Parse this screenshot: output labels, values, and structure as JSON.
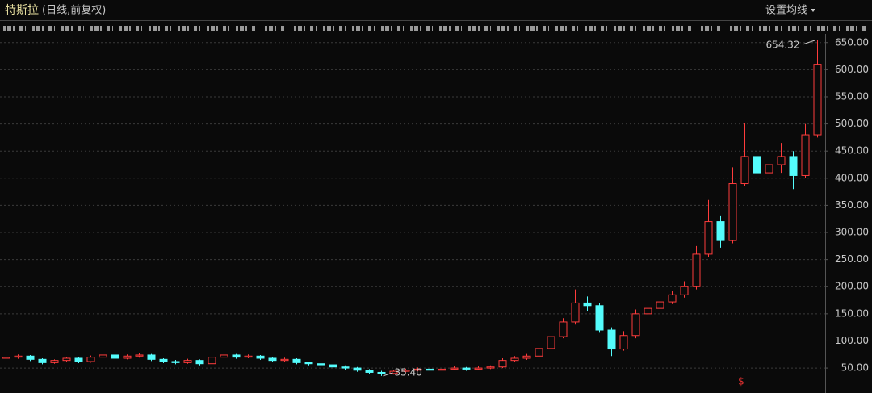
{
  "chart_data": {
    "type": "candlestick",
    "title": "特斯拉",
    "subtitle": "(日线,前复权)",
    "menu": "设置均线",
    "open": [
      68,
      70,
      72,
      66,
      60,
      64,
      68,
      62,
      70,
      74,
      68,
      72,
      74,
      66,
      62,
      60,
      64,
      58,
      70,
      74,
      70,
      72,
      68,
      64,
      66,
      60,
      58,
      56,
      52,
      50,
      46,
      42,
      40,
      44,
      46,
      48,
      46,
      48,
      50,
      48,
      50,
      52,
      64,
      68,
      72,
      86,
      108,
      135,
      170,
      165,
      120,
      85,
      110,
      150,
      160,
      172,
      185,
      200,
      260,
      320,
      285,
      390,
      440,
      410,
      425,
      440,
      405,
      480
    ],
    "high": [
      74,
      75,
      74,
      68,
      66,
      71,
      70,
      73,
      78,
      76,
      75,
      77,
      76,
      68,
      65,
      67,
      66,
      73,
      77,
      76,
      75,
      74,
      70,
      69,
      68,
      62,
      61,
      58,
      55,
      52,
      48,
      45,
      47,
      49,
      51,
      50,
      51,
      53,
      52,
      53,
      55,
      68,
      72,
      76,
      92,
      115,
      142,
      195,
      182,
      170,
      125,
      118,
      158,
      168,
      180,
      192,
      210,
      275,
      360,
      330,
      420,
      502,
      460,
      450,
      465,
      450,
      500,
      654.32
    ],
    "low": [
      65,
      67,
      63,
      57,
      58,
      61,
      59,
      60,
      67,
      65,
      66,
      69,
      63,
      59,
      57,
      58,
      55,
      56,
      67,
      67,
      68,
      65,
      61,
      62,
      57,
      55,
      53,
      49,
      47,
      43,
      39,
      35.4,
      38,
      42,
      44,
      43,
      44,
      46,
      45,
      46,
      48,
      50,
      62,
      65,
      70,
      84,
      105,
      130,
      155,
      115,
      72,
      82,
      105,
      142,
      155,
      168,
      180,
      195,
      255,
      272,
      280,
      385,
      330,
      395,
      410,
      380,
      400,
      475
    ],
    "close": [
      70,
      72,
      66,
      60,
      64,
      68,
      62,
      70,
      74,
      68,
      72,
      74,
      66,
      62,
      60,
      64,
      58,
      70,
      74,
      70,
      72,
      68,
      64,
      66,
      60,
      58,
      56,
      52,
      50,
      46,
      42,
      40,
      44,
      46,
      48,
      46,
      48,
      50,
      48,
      50,
      52,
      64,
      68,
      72,
      86,
      108,
      135,
      170,
      165,
      120,
      85,
      110,
      150,
      160,
      172,
      185,
      200,
      260,
      320,
      285,
      390,
      440,
      410,
      425,
      440,
      405,
      480,
      610
    ],
    "up_color": "#ff3c3c",
    "down_color": "#54fcfc",
    "annotations": {
      "max": "654.32",
      "min": "35.40"
    },
    "event_marker": "$",
    "ylim": [
      4,
      666
    ],
    "yticks": [
      {
        "value": 50,
        "label": "50.00"
      },
      {
        "value": 100,
        "label": "100.00"
      },
      {
        "value": 150,
        "label": "150.00"
      },
      {
        "value": 200,
        "label": "200.00"
      },
      {
        "value": 250,
        "label": "250.00"
      },
      {
        "value": 300,
        "label": "300.00"
      },
      {
        "value": 350,
        "label": "350.00"
      },
      {
        "value": 400,
        "label": "400.00"
      },
      {
        "value": 450,
        "label": "450.00"
      },
      {
        "value": 500,
        "label": "500.00"
      },
      {
        "value": 550,
        "label": "550.00"
      },
      {
        "value": 600,
        "label": "600.00"
      },
      {
        "value": 650,
        "label": "650.00"
      }
    ],
    "grid": true
  }
}
